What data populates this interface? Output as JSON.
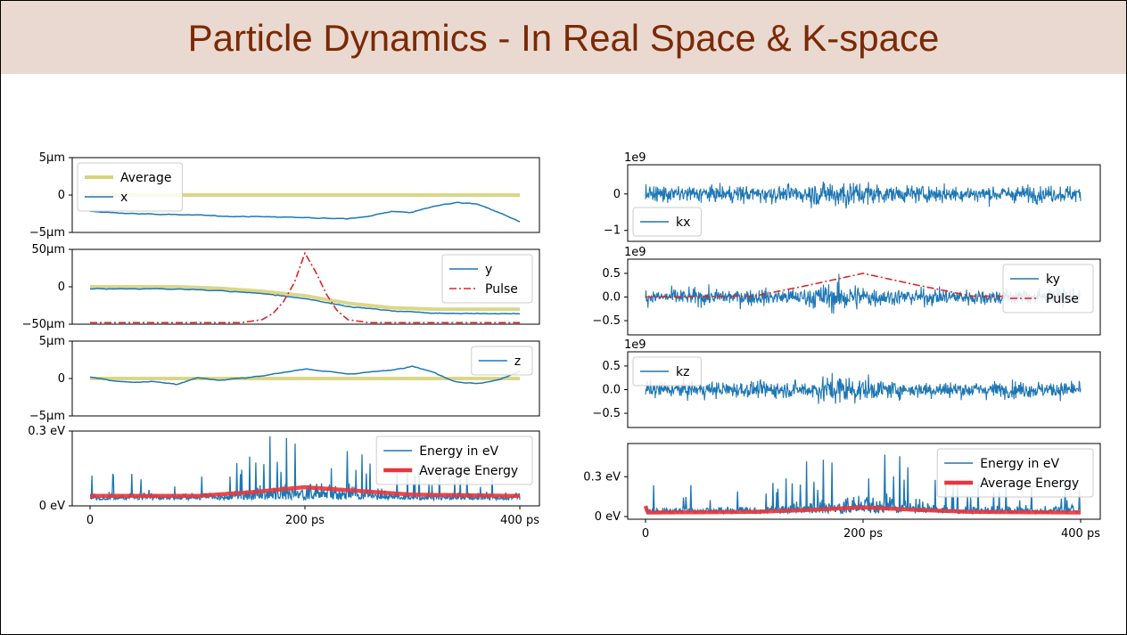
{
  "title": "Particle Dynamics - In Real Space & K-space",
  "colors": {
    "title_bg": "#ead9d0",
    "title_text": "#7a2a06",
    "series_blue": "#1f77b4",
    "average_yellow": "#d6d37a",
    "pulse_red": "#d62728",
    "avg_energy_red": "#e8363b"
  },
  "chart_data": [
    {
      "type": "line",
      "panel": "real-x",
      "x_range": [
        0,
        400
      ],
      "ylim": [
        -5,
        5
      ],
      "y_ticks": [
        5,
        0,
        -5
      ],
      "y_tick_labels": [
        "5μm",
        "0",
        "−5μm"
      ],
      "legend": [
        "Average",
        "x"
      ],
      "legend_position": "top-left",
      "series": [
        {
          "name": "Average",
          "x": [
            0,
            400
          ],
          "values": [
            0,
            0
          ]
        },
        {
          "name": "x",
          "x": [
            0,
            40,
            80,
            120,
            160,
            200,
            240,
            260,
            280,
            300,
            320,
            340,
            360,
            380,
            400
          ],
          "values": [
            -2.2,
            -2.5,
            -2.6,
            -2.8,
            -2.9,
            -3.0,
            -3.2,
            -2.8,
            -2.2,
            -2.3,
            -1.5,
            -1.0,
            -1.2,
            -2.3,
            -3.6
          ]
        }
      ]
    },
    {
      "type": "line",
      "panel": "real-y",
      "x_range": [
        0,
        400
      ],
      "ylim": [
        -50,
        50
      ],
      "y_ticks": [
        50,
        0,
        -50
      ],
      "y_tick_labels": [
        "50μm",
        "0",
        "−50μm"
      ],
      "legend": [
        "y",
        "Pulse"
      ],
      "legend_position": "top-right",
      "series": [
        {
          "name": "Average",
          "x": [
            0,
            80,
            120,
            160,
            200,
            240,
            280,
            320,
            360,
            400
          ],
          "values": [
            0,
            0,
            -2,
            -6,
            -12,
            -22,
            -28,
            -30,
            -30,
            -30
          ]
        },
        {
          "name": "y",
          "x": [
            0,
            80,
            120,
            160,
            200,
            240,
            280,
            320,
            360,
            400
          ],
          "values": [
            -3,
            -3,
            -5,
            -9,
            -16,
            -26,
            -32,
            -35,
            -36,
            -36
          ]
        },
        {
          "name": "Pulse",
          "x": [
            0,
            140,
            160,
            170,
            180,
            190,
            200,
            210,
            220,
            230,
            240,
            260,
            400
          ],
          "values": [
            -48,
            -48,
            -44,
            -36,
            -20,
            5,
            45,
            20,
            -10,
            -32,
            -44,
            -48,
            -48
          ]
        }
      ]
    },
    {
      "type": "line",
      "panel": "real-z",
      "x_range": [
        0,
        400
      ],
      "ylim": [
        -5,
        5
      ],
      "y_ticks": [
        5,
        0,
        -5
      ],
      "y_tick_labels": [
        "5μm",
        "0",
        "−5μm"
      ],
      "legend": [
        "z"
      ],
      "legend_position": "top-right",
      "series": [
        {
          "name": "Average",
          "x": [
            0,
            400
          ],
          "values": [
            0,
            0
          ]
        },
        {
          "name": "z",
          "x": [
            0,
            20,
            40,
            60,
            80,
            100,
            120,
            160,
            200,
            240,
            280,
            300,
            320,
            340,
            360,
            380,
            400
          ],
          "values": [
            0.2,
            -0.3,
            -0.5,
            -0.4,
            -0.8,
            0.1,
            -0.2,
            0.3,
            1.3,
            0.6,
            1.1,
            1.7,
            0.8,
            -0.4,
            -0.7,
            -0.2,
            1.0
          ]
        }
      ]
    },
    {
      "type": "line",
      "panel": "real-energy",
      "x_range": [
        0,
        400
      ],
      "x_ticks": [
        0,
        200,
        400
      ],
      "x_tick_labels": [
        "0",
        "200 ps",
        "400 ps"
      ],
      "ylim": [
        0,
        0.3
      ],
      "y_ticks": [
        0.3,
        0
      ],
      "y_tick_labels": [
        "0.3 eV",
        "0 eV"
      ],
      "legend": [
        "Energy in eV",
        "Average Energy"
      ],
      "legend_position": "top-right",
      "series": [
        {
          "name": "Energy in eV",
          "x": [
            0,
            400
          ],
          "values": [
            0.04,
            0.05
          ]
        },
        {
          "name": "Average Energy",
          "x": [
            0,
            100,
            150,
            200,
            250,
            300,
            400
          ],
          "values": [
            0.04,
            0.04,
            0.055,
            0.075,
            0.06,
            0.045,
            0.04
          ]
        }
      ]
    },
    {
      "type": "line",
      "panel": "k-x",
      "x_range": [
        0,
        400
      ],
      "ylim": [
        -1.3,
        0.8
      ],
      "y_ticks": [
        0,
        -1
      ],
      "y_tick_labels": [
        "0",
        "−1"
      ],
      "offset_label": "1e9",
      "legend": [
        "kx"
      ],
      "legend_position": "bottom-left",
      "series": [
        {
          "name": "kx",
          "x": [
            0,
            400
          ],
          "values": [
            0,
            0
          ]
        }
      ]
    },
    {
      "type": "line",
      "panel": "k-y",
      "x_range": [
        0,
        400
      ],
      "ylim": [
        -0.8,
        0.8
      ],
      "y_ticks": [
        0.5,
        0,
        -0.5
      ],
      "y_tick_labels": [
        "0.5",
        "0.0",
        "−0.5"
      ],
      "offset_label": "1e9",
      "legend": [
        "ky",
        "Pulse"
      ],
      "legend_position": "top-right",
      "series": [
        {
          "name": "ky",
          "x": [
            0,
            400
          ],
          "values": [
            0,
            0
          ]
        },
        {
          "name": "Pulse",
          "x": [
            0,
            100,
            150,
            200,
            250,
            300,
            400
          ],
          "values": [
            0,
            0.02,
            0.25,
            0.5,
            0.25,
            0.02,
            0
          ]
        }
      ]
    },
    {
      "type": "line",
      "panel": "k-z",
      "x_range": [
        0,
        400
      ],
      "ylim": [
        -0.8,
        0.8
      ],
      "y_ticks": [
        0.5,
        0,
        -0.5
      ],
      "y_tick_labels": [
        "0.5",
        "0.0",
        "−0.5"
      ],
      "offset_label": "1e9",
      "legend": [
        "kz"
      ],
      "legend_position": "top-left",
      "series": [
        {
          "name": "kz",
          "x": [
            0,
            400
          ],
          "values": [
            0,
            0
          ]
        }
      ]
    },
    {
      "type": "line",
      "panel": "k-energy",
      "x_range": [
        0,
        400
      ],
      "x_ticks": [
        0,
        200,
        400
      ],
      "x_tick_labels": [
        "0",
        "200 ps",
        "400 ps"
      ],
      "ylim": [
        -0.02,
        0.55
      ],
      "y_ticks": [
        0.3,
        0
      ],
      "y_tick_labels": [
        "0.3 eV",
        "0 eV"
      ],
      "legend": [
        "Energy in eV",
        "Average Energy"
      ],
      "legend_position": "top-right",
      "series": [
        {
          "name": "Energy in eV",
          "x": [
            0,
            400
          ],
          "values": [
            0.04,
            0.04
          ]
        },
        {
          "name": "Average Energy",
          "x": [
            0,
            2,
            100,
            150,
            200,
            250,
            300,
            400
          ],
          "values": [
            0.08,
            0.03,
            0.035,
            0.05,
            0.07,
            0.05,
            0.035,
            0.03
          ]
        }
      ]
    }
  ]
}
